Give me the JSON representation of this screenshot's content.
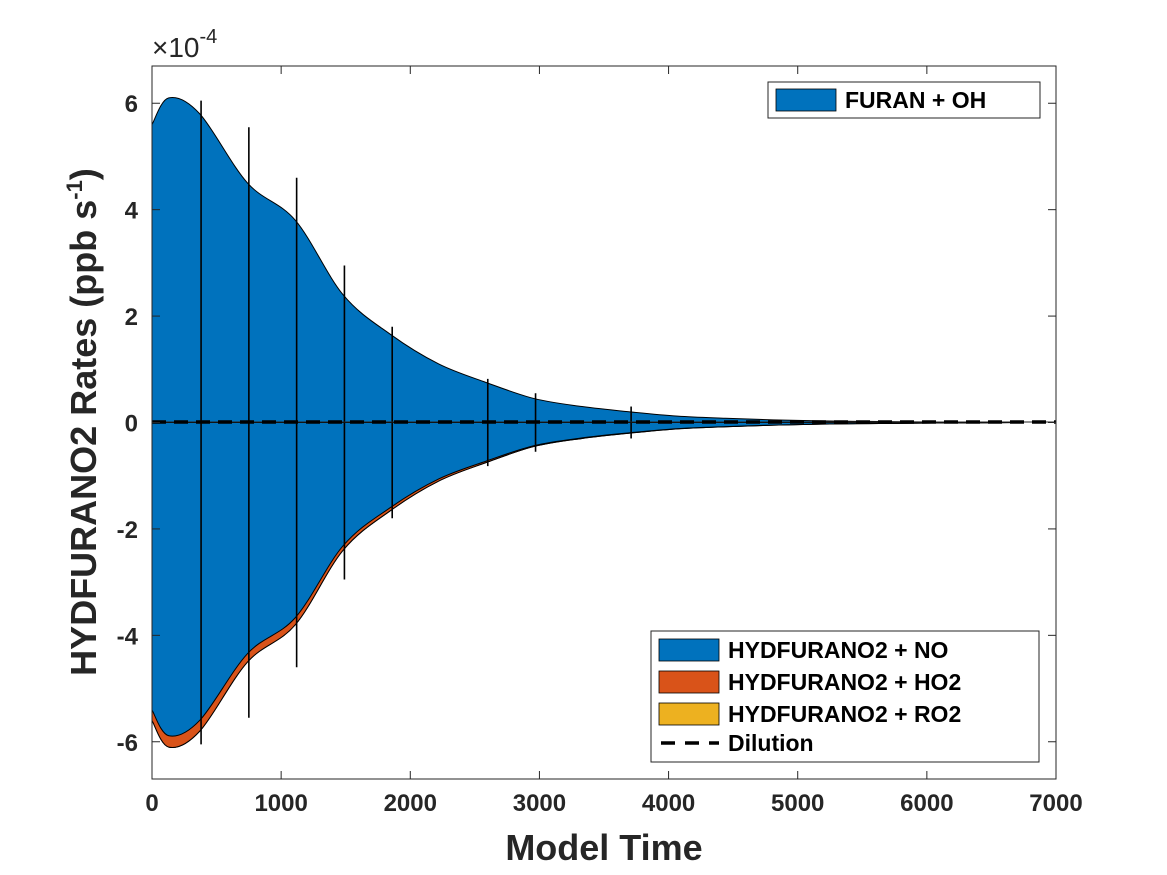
{
  "chart_data": {
    "type": "area",
    "xlabel": "Model Time",
    "ylabel_main": "HYDFURANO2 Rates (ppb s",
    "ylabel_sup": "-1",
    "ylabel_close": ")",
    "y_multiplier_base": "×10",
    "y_multiplier_exp": "-4",
    "xlim": [
      0,
      7000
    ],
    "ylim": [
      -6.7,
      6.7
    ],
    "xticks": [
      0,
      1000,
      2000,
      3000,
      4000,
      5000,
      6000,
      7000
    ],
    "yticks": [
      -6,
      -4,
      -2,
      0,
      2,
      4,
      6
    ],
    "xtick_labels": [
      "0",
      "1000",
      "2000",
      "3000",
      "4000",
      "5000",
      "6000",
      "7000"
    ],
    "ytick_labels": [
      "-6",
      "-4",
      "-2",
      "0",
      "2",
      "4",
      "6"
    ],
    "envelope": {
      "x": [
        0,
        130,
        370,
        740,
        1110,
        1480,
        1850,
        2220,
        2590,
        2960,
        3330,
        3700,
        4070,
        4440,
        4810,
        5180,
        5550,
        5920,
        6290,
        6700
      ],
      "y": [
        5.6,
        6.1,
        5.8,
        4.5,
        3.8,
        2.4,
        1.65,
        1.1,
        0.75,
        0.45,
        0.3,
        0.2,
        0.12,
        0.08,
        0.05,
        0.03,
        0.02,
        0.012,
        0.008,
        0.0
      ]
    },
    "spikes": {
      "x": [
        380,
        750,
        1120,
        1490,
        1860,
        2600,
        2970,
        3710
      ],
      "top": [
        6.05,
        5.55,
        4.6,
        2.95,
        1.8,
        0.82,
        0.55,
        0.3
      ]
    },
    "series_positive": [
      {
        "name": "FURAN + OH",
        "color": "#0072BD"
      }
    ],
    "series_negative": [
      {
        "name": "HYDFURANO2 + NO",
        "color": "#0072BD",
        "share": 0.965
      },
      {
        "name": "HYDFURANO2 + HO2",
        "color": "#D95319",
        "share": 0.035
      },
      {
        "name": "HYDFURANO2 + RO2",
        "color": "#EDB120",
        "share": 0.0
      }
    ],
    "dilution": {
      "name": "Dilution",
      "value": 0
    },
    "legends": {
      "top": {
        "position": "top-right",
        "entries": [
          "FURAN + OH"
        ]
      },
      "bottom": {
        "position": "bottom-right",
        "entries": [
          "HYDFURANO2 + NO",
          "HYDFURANO2 + HO2",
          "HYDFURANO2 + RO2",
          "Dilution"
        ]
      }
    }
  }
}
